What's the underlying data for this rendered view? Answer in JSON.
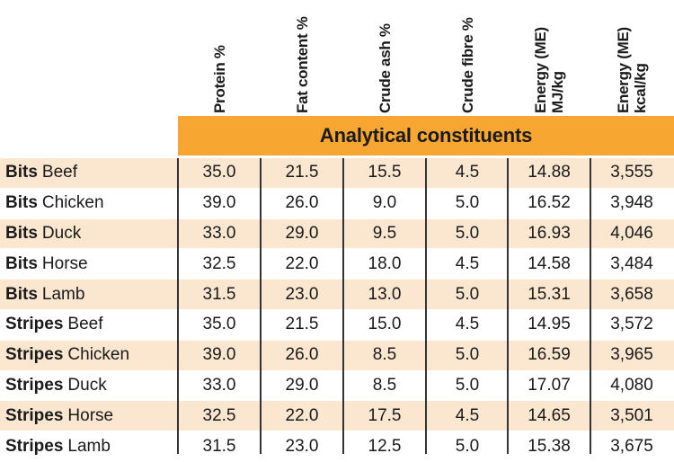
{
  "group_title": "Analytical constituents",
  "columns": [
    {
      "lines": [
        "Protein %"
      ]
    },
    {
      "lines": [
        "Fat content %"
      ]
    },
    {
      "lines": [
        "Crude ash %"
      ]
    },
    {
      "lines": [
        "Crude fibre %"
      ]
    },
    {
      "lines": [
        "Energy (ME)",
        "MJ/kg"
      ]
    },
    {
      "lines": [
        "Energy (ME)",
        "kcal/kg"
      ]
    }
  ],
  "rows": [
    {
      "brand": "Bits",
      "flavour": "Beef",
      "values": [
        "35.0",
        "21.5",
        "15.5",
        "4.5",
        "14.88",
        "3,555"
      ]
    },
    {
      "brand": "Bits",
      "flavour": "Chicken",
      "values": [
        "39.0",
        "26.0",
        "9.0",
        "5.0",
        "16.52",
        "3,948"
      ]
    },
    {
      "brand": "Bits",
      "flavour": "Duck",
      "values": [
        "33.0",
        "29.0",
        "9.5",
        "5.0",
        "16.93",
        "4,046"
      ]
    },
    {
      "brand": "Bits",
      "flavour": "Horse",
      "values": [
        "32.5",
        "22.0",
        "18.0",
        "4.5",
        "14.58",
        "3,484"
      ]
    },
    {
      "brand": "Bits",
      "flavour": "Lamb",
      "values": [
        "31.5",
        "23.0",
        "13.0",
        "5.0",
        "15.31",
        "3,658"
      ]
    },
    {
      "brand": "Stripes",
      "flavour": "Beef",
      "values": [
        "35.0",
        "21.5",
        "15.0",
        "4.5",
        "14.95",
        "3,572"
      ]
    },
    {
      "brand": "Stripes",
      "flavour": "Chicken",
      "values": [
        "39.0",
        "26.0",
        "8.5",
        "5.0",
        "16.59",
        "3,965"
      ]
    },
    {
      "brand": "Stripes",
      "flavour": "Duck",
      "values": [
        "33.0",
        "29.0",
        "8.5",
        "5.0",
        "17.07",
        "4,080"
      ]
    },
    {
      "brand": "Stripes",
      "flavour": "Horse",
      "values": [
        "32.5",
        "22.0",
        "17.5",
        "4.5",
        "14.65",
        "3,501"
      ]
    },
    {
      "brand": "Stripes",
      "flavour": "Lamb",
      "values": [
        "31.5",
        "23.0",
        "12.5",
        "5.0",
        "15.38",
        "3,675"
      ]
    }
  ],
  "colors": {
    "band": "#f7a631",
    "shaded_row": "#fbe7cf"
  }
}
